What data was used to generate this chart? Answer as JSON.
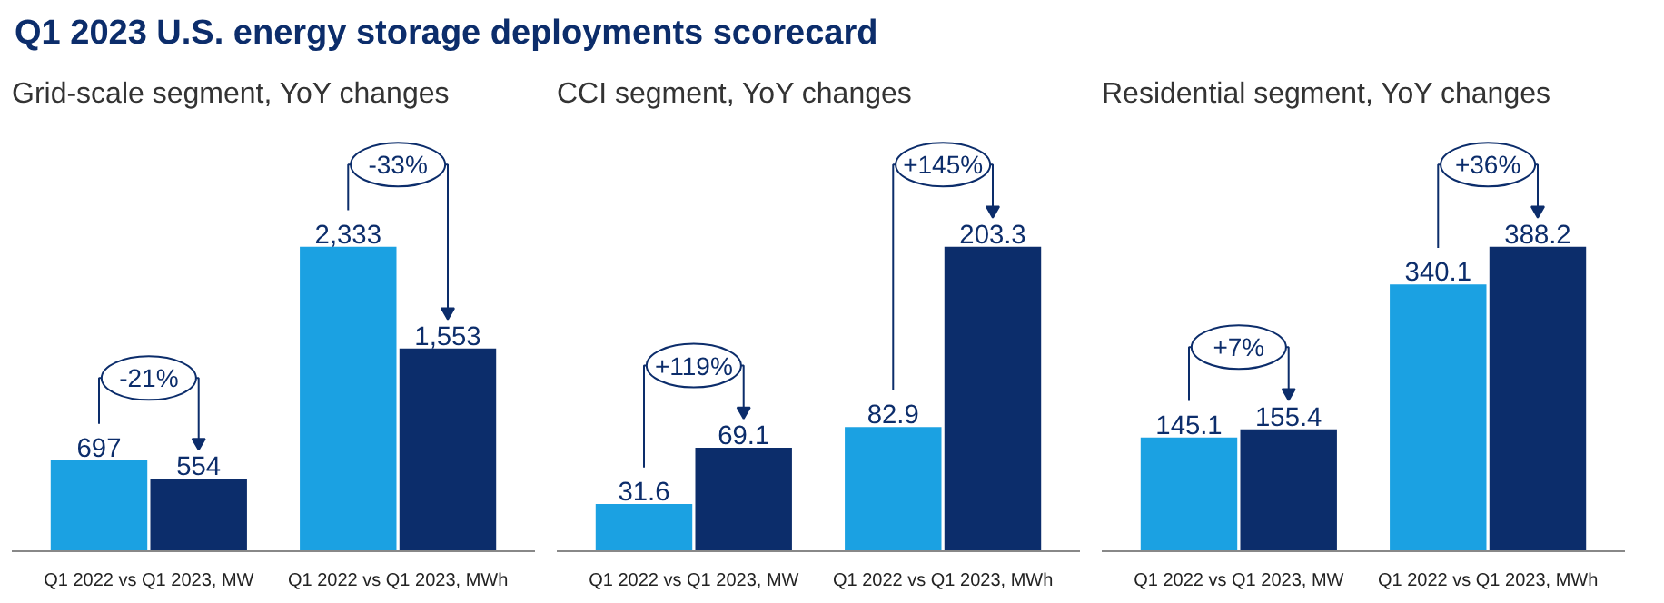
{
  "chart_data": [
    {
      "type": "bar",
      "title": "Q1 2023 U.S. energy storage deployments scorecard",
      "subtitle": "Grid-scale segment, YoY changes",
      "categories": [
        "Q1 2022 vs Q1 2023, MW",
        "Q1 2022 vs Q1 2023, MWh"
      ],
      "series": [
        {
          "color": "#1ba1e2",
          "values": [
            697,
            2333
          ],
          "value_labels": [
            "697",
            "2,333"
          ]
        },
        {
          "color": "#0c2d6b",
          "values": [
            554,
            1553
          ],
          "value_labels": [
            "554",
            "1,553"
          ]
        }
      ],
      "annotations": [
        "-21%",
        "-33%"
      ],
      "grid": false
    },
    {
      "type": "bar",
      "subtitle": "CCI segment, YoY changes",
      "categories": [
        "Q1 2022 vs Q1 2023, MW",
        "Q1 2022 vs Q1 2023, MWh"
      ],
      "series": [
        {
          "color": "#1ba1e2",
          "values": [
            31.6,
            82.9
          ]
        },
        {
          "color": "#0c2d6b",
          "values": [
            69.1,
            203.3
          ]
        }
      ],
      "data_labels": true,
      "annotations": [
        "+119%",
        "+145%"
      ],
      "grid": false
    },
    {
      "type": "bar",
      "subtitle": "Residential segment, YoY changes",
      "categories": [
        "Q1 2022 vs Q1 2023, MW",
        "Q1 2022 vs Q1 2023, MWh"
      ],
      "series": [
        {
          "color": "#1ba1e2",
          "values": [
            145.1,
            340.1
          ]
        },
        {
          "color": "#0c2d6b",
          "values": [
            155.4,
            388.2
          ]
        }
      ],
      "data_labels": true,
      "annotations": [
        "+7%",
        "+36%"
      ],
      "grid": false
    }
  ]
}
